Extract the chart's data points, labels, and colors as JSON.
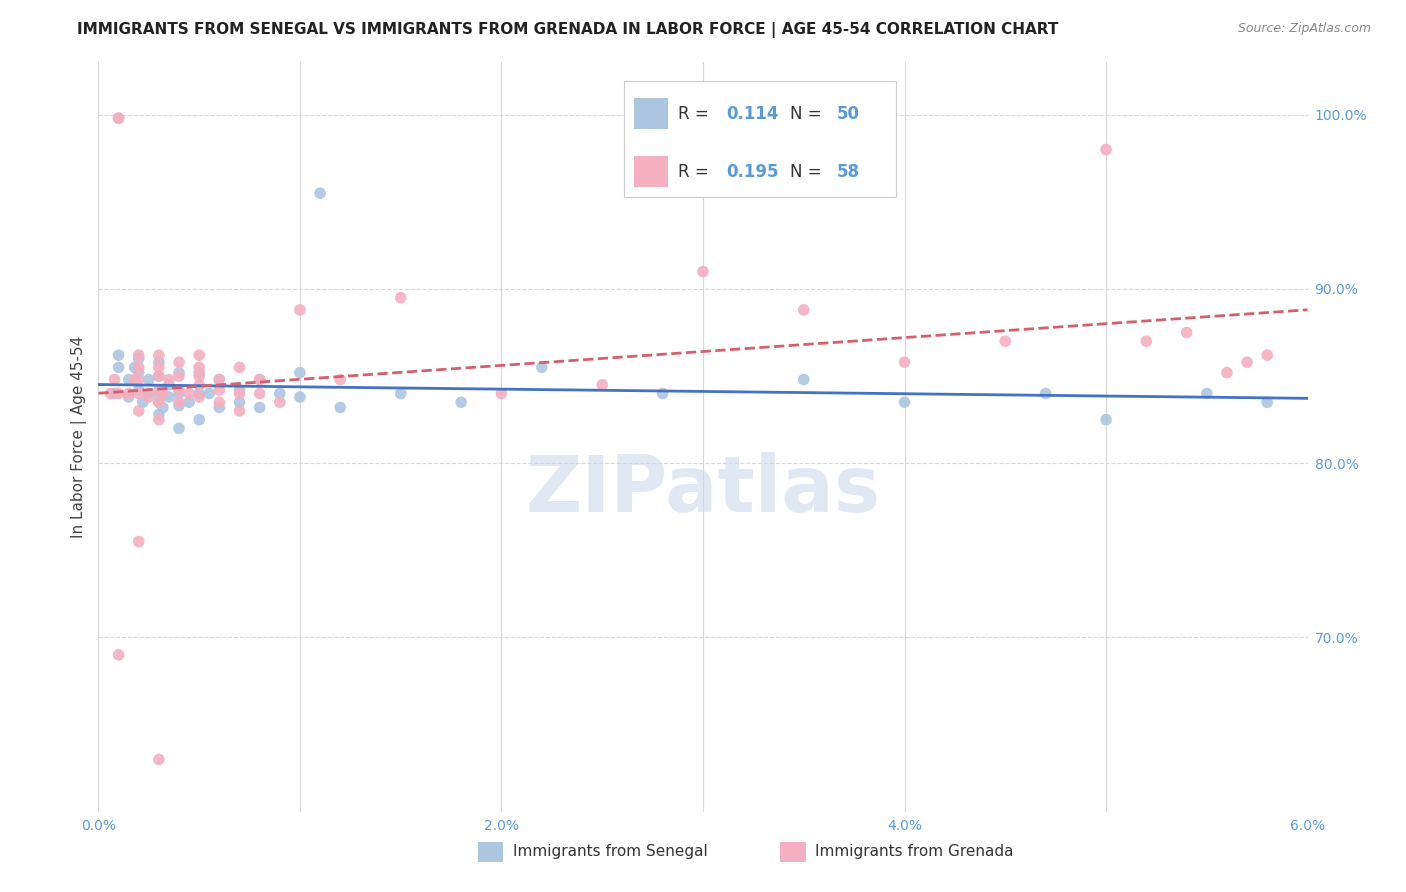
{
  "title": "IMMIGRANTS FROM SENEGAL VS IMMIGRANTS FROM GRENADA IN LABOR FORCE | AGE 45-54 CORRELATION CHART",
  "source": "Source: ZipAtlas.com",
  "ylabel": "In Labor Force | Age 45-54",
  "xlim": [
    0.0,
    0.06
  ],
  "ylim": [
    0.6,
    1.03
  ],
  "xtick_vals": [
    0.0,
    0.01,
    0.02,
    0.03,
    0.04,
    0.05,
    0.06
  ],
  "xticklabels": [
    "0.0%",
    "",
    "2.0%",
    "",
    "4.0%",
    "",
    "6.0%"
  ],
  "yticks_right": [
    0.7,
    0.8,
    0.9,
    1.0
  ],
  "yticklabels_right": [
    "70.0%",
    "80.0%",
    "90.0%",
    "100.0%"
  ],
  "color_senegal": "#adc6e0",
  "color_grenada": "#f4afc0",
  "trendline_senegal": "#4472c4",
  "trendline_grenada": "#d45f6e",
  "watermark": "ZIPatlas",
  "watermark_color": "#c8d8ea",
  "senegal_x": [
    0.0008,
    0.001,
    0.001,
    0.0015,
    0.0015,
    0.0018,
    0.002,
    0.002,
    0.002,
    0.0022,
    0.0025,
    0.0025,
    0.003,
    0.003,
    0.003,
    0.003,
    0.003,
    0.0032,
    0.0035,
    0.0035,
    0.004,
    0.004,
    0.004,
    0.004,
    0.0045,
    0.005,
    0.005,
    0.005,
    0.0055,
    0.006,
    0.006,
    0.007,
    0.007,
    0.008,
    0.008,
    0.009,
    0.01,
    0.01,
    0.011,
    0.012,
    0.015,
    0.018,
    0.022,
    0.028,
    0.035,
    0.04,
    0.047,
    0.05,
    0.055,
    0.058
  ],
  "senegal_y": [
    0.84,
    0.855,
    0.862,
    0.838,
    0.848,
    0.855,
    0.842,
    0.852,
    0.86,
    0.835,
    0.84,
    0.848,
    0.828,
    0.835,
    0.84,
    0.85,
    0.858,
    0.832,
    0.838,
    0.845,
    0.82,
    0.833,
    0.84,
    0.852,
    0.835,
    0.825,
    0.84,
    0.852,
    0.84,
    0.832,
    0.848,
    0.835,
    0.842,
    0.832,
    0.848,
    0.84,
    0.838,
    0.852,
    0.955,
    0.832,
    0.84,
    0.835,
    0.855,
    0.84,
    0.848,
    0.835,
    0.84,
    0.825,
    0.84,
    0.835
  ],
  "grenada_x": [
    0.0006,
    0.0008,
    0.001,
    0.001,
    0.001,
    0.0015,
    0.0018,
    0.002,
    0.002,
    0.002,
    0.002,
    0.002,
    0.0025,
    0.003,
    0.003,
    0.003,
    0.003,
    0.003,
    0.003,
    0.0032,
    0.0035,
    0.004,
    0.004,
    0.004,
    0.004,
    0.0045,
    0.005,
    0.005,
    0.005,
    0.005,
    0.005,
    0.006,
    0.006,
    0.006,
    0.007,
    0.007,
    0.007,
    0.008,
    0.008,
    0.009,
    0.01,
    0.012,
    0.015,
    0.02,
    0.025,
    0.03,
    0.035,
    0.04,
    0.045,
    0.05,
    0.052,
    0.054,
    0.056,
    0.057,
    0.058,
    0.001,
    0.002,
    0.003
  ],
  "grenada_y": [
    0.84,
    0.848,
    0.84,
    0.998,
    0.998,
    0.84,
    0.848,
    0.83,
    0.84,
    0.848,
    0.855,
    0.862,
    0.838,
    0.825,
    0.835,
    0.842,
    0.85,
    0.855,
    0.862,
    0.84,
    0.848,
    0.835,
    0.842,
    0.85,
    0.858,
    0.84,
    0.838,
    0.845,
    0.85,
    0.855,
    0.862,
    0.835,
    0.842,
    0.848,
    0.83,
    0.84,
    0.855,
    0.84,
    0.848,
    0.835,
    0.888,
    0.848,
    0.895,
    0.84,
    0.845,
    0.91,
    0.888,
    0.858,
    0.87,
    0.98,
    0.87,
    0.875,
    0.852,
    0.858,
    0.862,
    0.69,
    0.755,
    0.63
  ],
  "background_color": "#ffffff",
  "grid_color": "#d8d8d8",
  "title_fontsize": 11,
  "axis_label_fontsize": 11,
  "tick_fontsize": 10,
  "tick_color": "#5b9bd5"
}
